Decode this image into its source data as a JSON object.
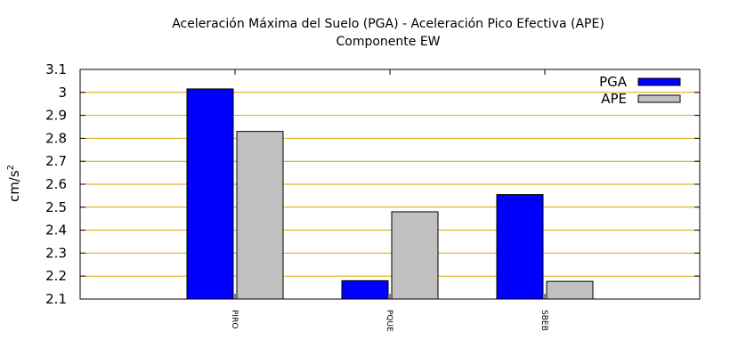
{
  "chart_data": {
    "type": "bar",
    "title_line1": "Aceleración Máxima del Suelo (PGA) -  Aceleración Pico Efectiva (APE)",
    "title_line2": "Componente EW",
    "ylabel_base": "cm/s",
    "ylabel_sup": "2",
    "xlabel": "",
    "ylim": [
      2.1,
      3.1
    ],
    "yticks": [
      2.1,
      2.2,
      2.3,
      2.4,
      2.5,
      2.6,
      2.7,
      2.8,
      2.9,
      3,
      3.1
    ],
    "ytick_labels": [
      "2.1",
      "2.2",
      "2.3",
      "2.4",
      "2.5",
      "2.6",
      "2.7",
      "2.8",
      "2.9",
      "3",
      "3.1"
    ],
    "grid": true,
    "grid_color": "#d9a400",
    "legend_position": "top-right",
    "categories": [
      "PIRO",
      "PQUE",
      "SBEB"
    ],
    "series": [
      {
        "name": "PGA",
        "color": "#0000ff",
        "values": [
          3.015,
          2.18,
          2.555
        ]
      },
      {
        "name": "APE",
        "color": "#c0c0c0",
        "values": [
          2.83,
          2.48,
          2.177
        ]
      }
    ]
  }
}
